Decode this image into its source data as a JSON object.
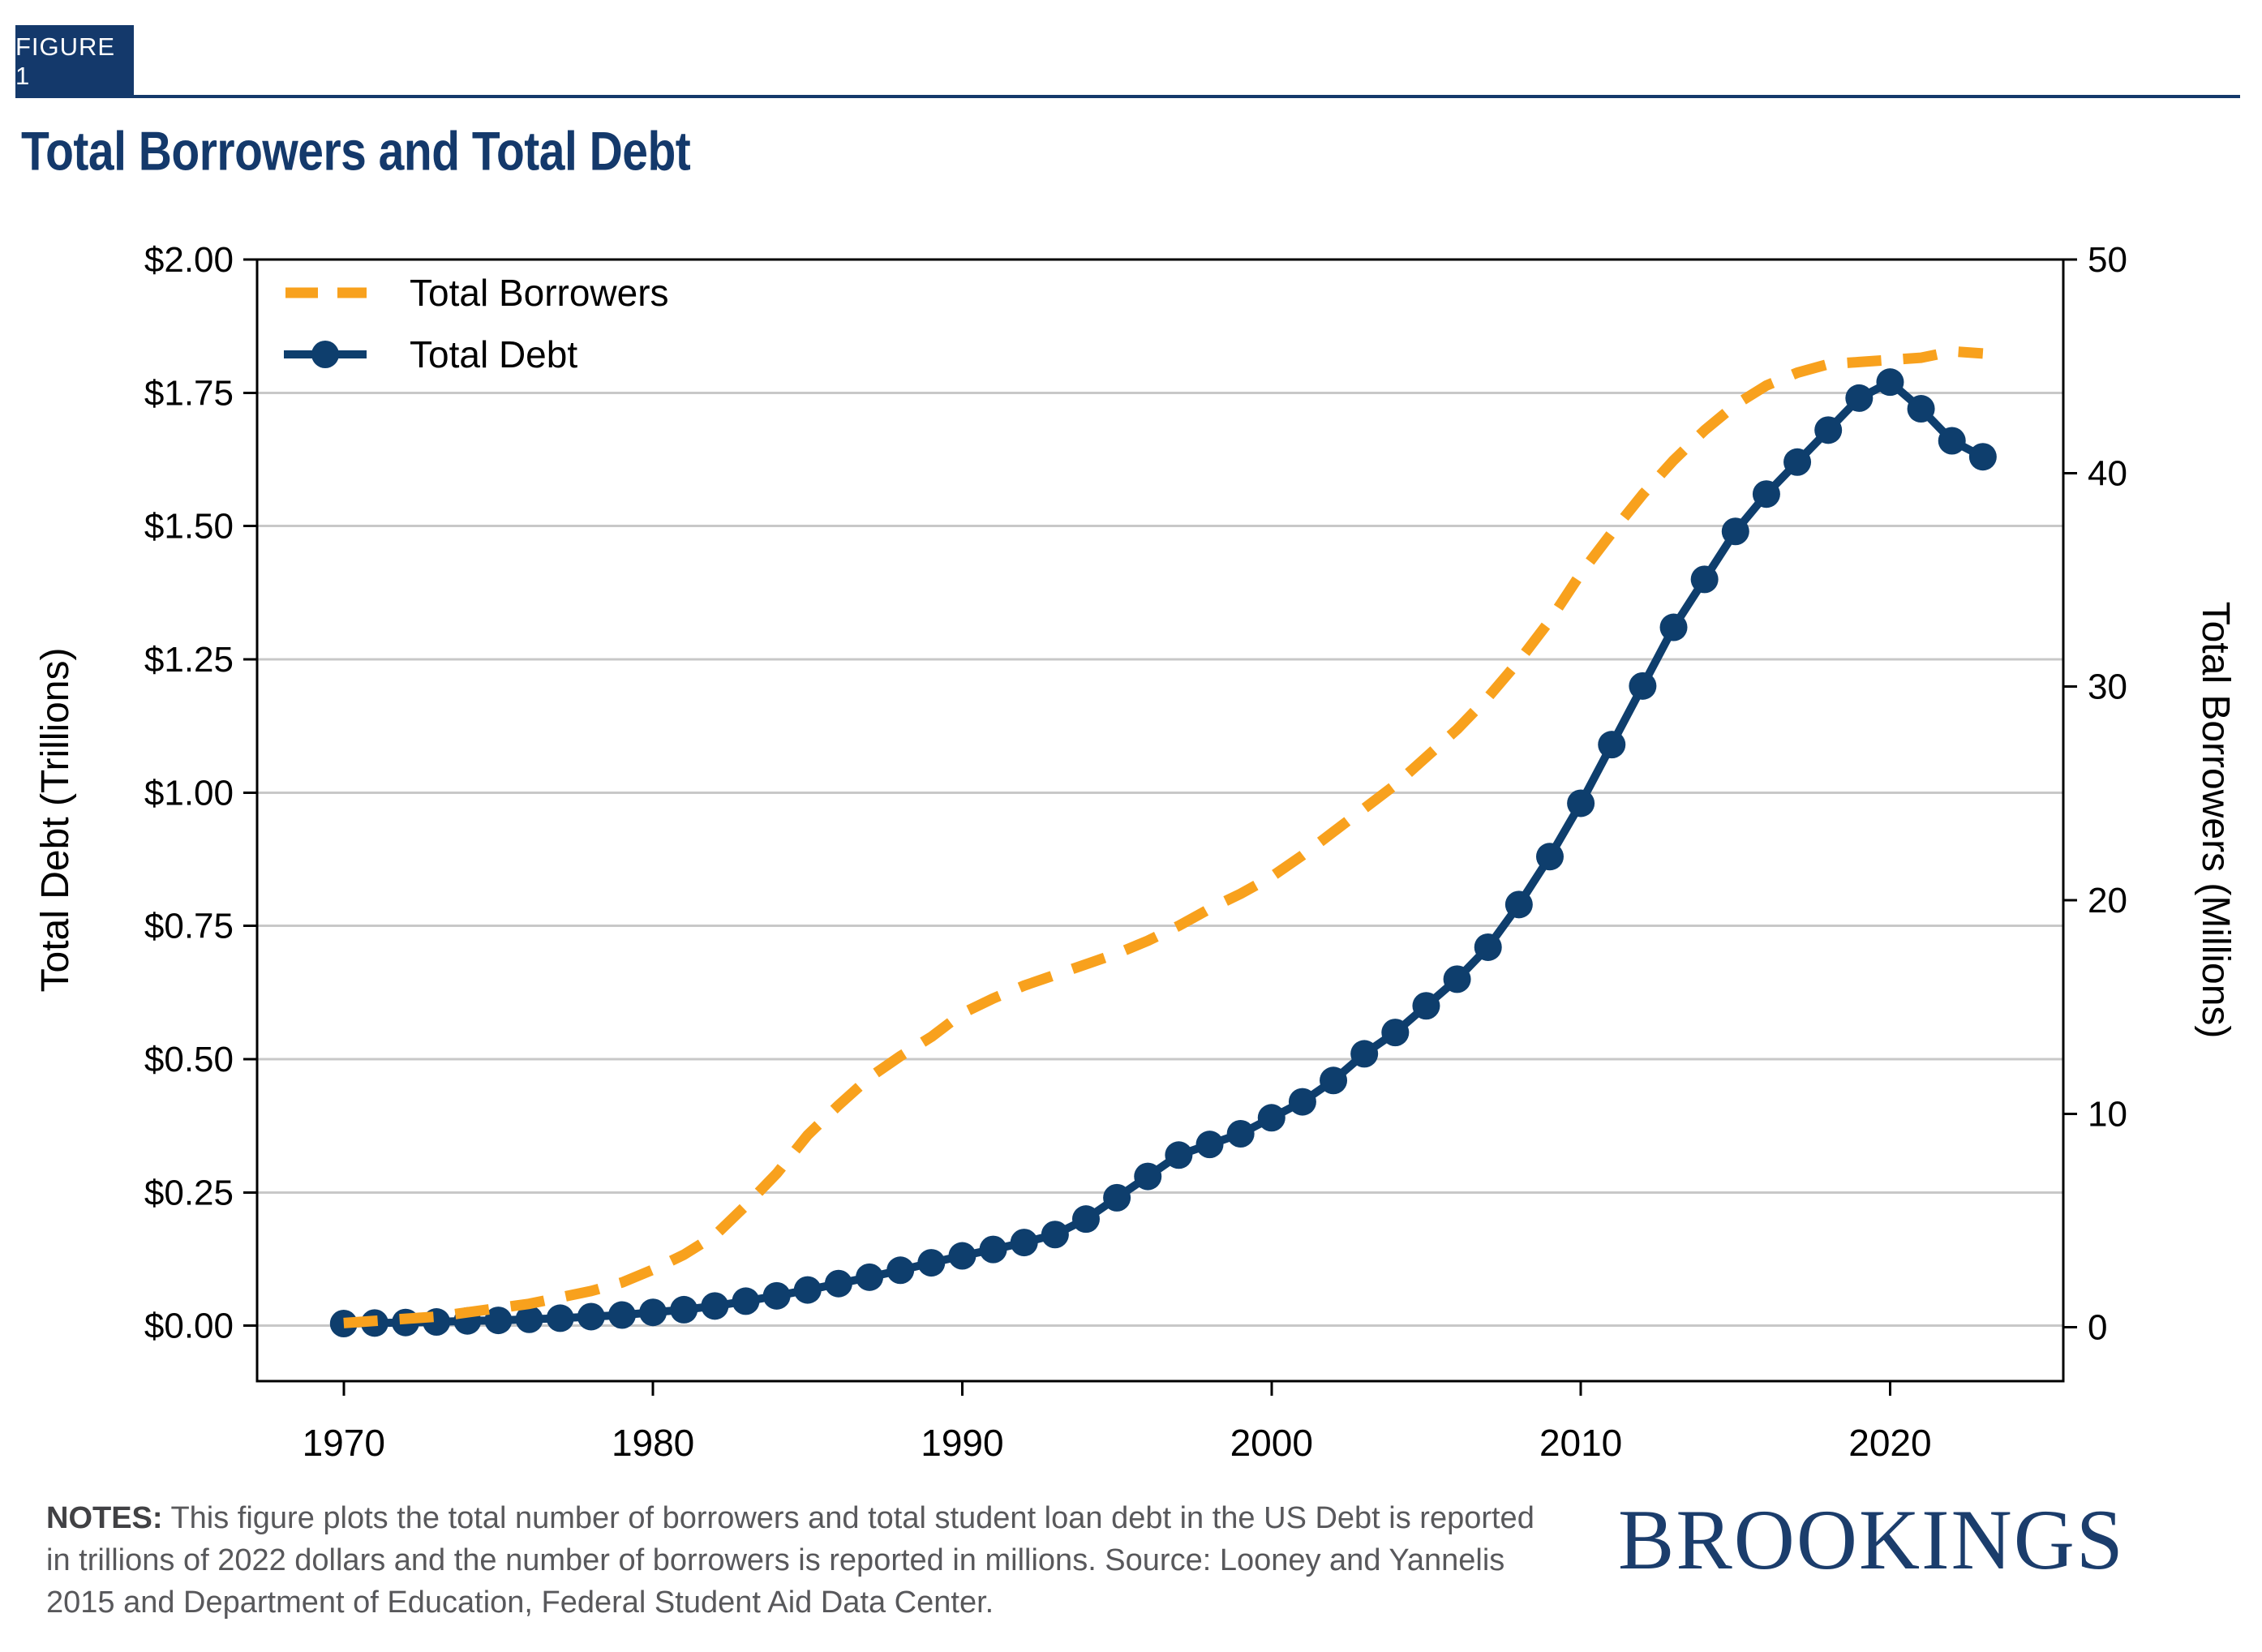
{
  "figure_label": "FIGURE 1",
  "title": "Total Borrowers and Total Debt",
  "notes": {
    "label": "NOTES:",
    "line1": "This figure plots the total number of borrowers and total student loan debt in the US Debt is reported",
    "line2": "in trillions of 2022 dollars and the number of borrowers is reported in millions. Source: Looney and Yannelis",
    "line3": "2015 and Department of Education, Federal Student Aid Data Center."
  },
  "logo": "BROOKINGS",
  "colors": {
    "navy": "#0E3E6D",
    "orange": "#F8A11D",
    "header_navy": "#14396B",
    "title_navy": "#14396B",
    "grid_gray": "#C8C8C8",
    "axis_black": "#000000",
    "notes_gray": "#58585B",
    "logo_navy": "#1B3D6C"
  },
  "chart_data": {
    "type": "line",
    "title": "Total Borrowers and Total Debt",
    "grid": "horizontal",
    "legend_position": "top-left",
    "x": [
      1970,
      1971,
      1972,
      1973,
      1974,
      1975,
      1976,
      1977,
      1978,
      1979,
      1980,
      1981,
      1982,
      1983,
      1984,
      1985,
      1986,
      1987,
      1988,
      1989,
      1990,
      1991,
      1992,
      1993,
      1994,
      1995,
      1996,
      1997,
      1998,
      1999,
      2000,
      2001,
      2002,
      2003,
      2004,
      2005,
      2006,
      2007,
      2008,
      2009,
      2010,
      2011,
      2012,
      2013,
      2014,
      2015,
      2016,
      2017,
      2018,
      2019,
      2020,
      2021,
      2022,
      2023
    ],
    "series": [
      {
        "name": "Total Borrowers",
        "axis": "right",
        "units": "millions",
        "style": "dashed",
        "color": "#F8A11D",
        "values": [
          0.2,
          0.3,
          0.4,
          0.5,
          0.7,
          0.9,
          1.1,
          1.4,
          1.7,
          2.1,
          2.7,
          3.4,
          4.3,
          5.7,
          7.2,
          9.0,
          10.4,
          11.7,
          12.7,
          13.6,
          14.7,
          15.4,
          16.0,
          16.5,
          17.0,
          17.5,
          18.1,
          18.8,
          19.6,
          20.3,
          21.1,
          22.1,
          23.2,
          24.3,
          25.4,
          26.7,
          28.0,
          29.5,
          31.2,
          33.1,
          35.3,
          37.2,
          39.0,
          40.6,
          42.0,
          43.2,
          44.1,
          44.7,
          45.1,
          45.2,
          45.3,
          45.4,
          45.7,
          45.6
        ]
      },
      {
        "name": "Total Debt",
        "axis": "left",
        "units": "trillions of 2022 dollars",
        "style": "solid-markers",
        "color": "#0E3E6D",
        "values": [
          0.004,
          0.005,
          0.006,
          0.007,
          0.009,
          0.01,
          0.012,
          0.014,
          0.017,
          0.02,
          0.025,
          0.03,
          0.037,
          0.046,
          0.056,
          0.067,
          0.079,
          0.091,
          0.104,
          0.118,
          0.131,
          0.143,
          0.156,
          0.171,
          0.2,
          0.24,
          0.28,
          0.32,
          0.34,
          0.36,
          0.39,
          0.42,
          0.46,
          0.51,
          0.55,
          0.6,
          0.65,
          0.71,
          0.79,
          0.88,
          0.98,
          1.09,
          1.2,
          1.31,
          1.4,
          1.49,
          1.56,
          1.62,
          1.68,
          1.74,
          1.77,
          1.72,
          1.66,
          1.63
        ]
      }
    ],
    "left_axis": {
      "label": "Total Debt (Trillions)",
      "ticks": [
        "$0.00",
        "$0.25",
        "$0.50",
        "$0.75",
        "$1.00",
        "$1.25",
        "$1.50",
        "$1.75",
        "$2.00"
      ],
      "tick_values": [
        0,
        0.25,
        0.5,
        0.75,
        1.0,
        1.25,
        1.5,
        1.75,
        2.0
      ],
      "range": [
        -0.104,
        2.0
      ]
    },
    "right_axis": {
      "label": "Total Borrowers (Millions)",
      "ticks": [
        "0",
        "10",
        "20",
        "30",
        "40",
        "50"
      ],
      "tick_values": [
        0,
        10,
        20,
        30,
        40,
        50
      ],
      "range": [
        -2.52,
        50
      ]
    },
    "x_axis": {
      "ticks": [
        "1970",
        "1980",
        "1990",
        "2000",
        "2010",
        "2020"
      ],
      "tick_values": [
        1970,
        1980,
        1990,
        2000,
        2010,
        2020
      ],
      "range": [
        1967.2,
        2025.6
      ]
    }
  }
}
